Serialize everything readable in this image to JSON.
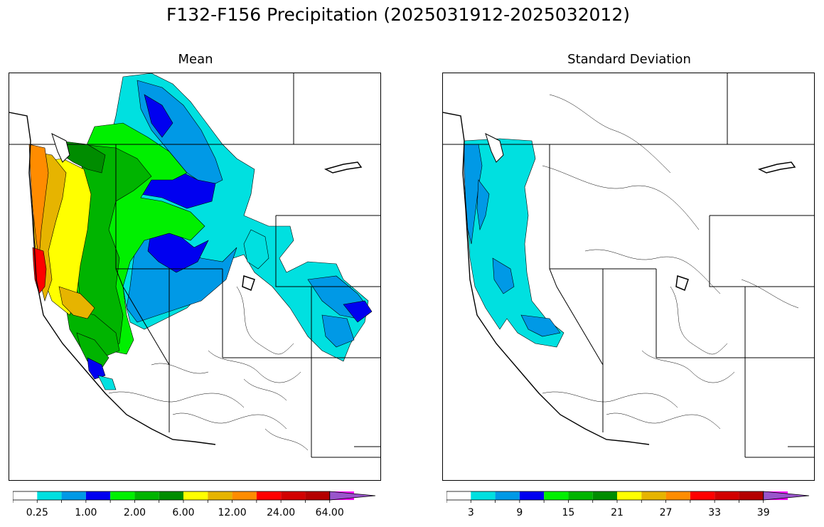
{
  "title": "F132-F156 Precipitation (2025031912-2025032012)",
  "panels": [
    {
      "title": "Mean",
      "colorbar": {
        "colors": [
          "#ffffff",
          "#00e0e0",
          "#0099e6",
          "#0000f0",
          "#00f000",
          "#00b400",
          "#008c00",
          "#ffff00",
          "#e6b400",
          "#ff8c00",
          "#ff0000",
          "#d20000",
          "#b40000",
          "#ff00ff",
          "#9955cc"
        ],
        "extend": "max",
        "tick_labels": [
          "0.25",
          "1.00",
          "2.00",
          "6.00",
          "12.00",
          "24.00",
          "64.00"
        ]
      }
    },
    {
      "title": "Standard Deviation",
      "colorbar": {
        "colors": [
          "#ffffff",
          "#00e0e0",
          "#0099e6",
          "#0000f0",
          "#00f000",
          "#00b400",
          "#008c00",
          "#ffff00",
          "#e6b400",
          "#ff8c00",
          "#ff0000",
          "#d20000",
          "#b40000",
          "#ff00ff",
          "#9955cc"
        ],
        "extend": "max",
        "tick_labels": [
          "3",
          "9",
          "15",
          "21",
          "27",
          "33",
          "39"
        ]
      }
    }
  ]
}
